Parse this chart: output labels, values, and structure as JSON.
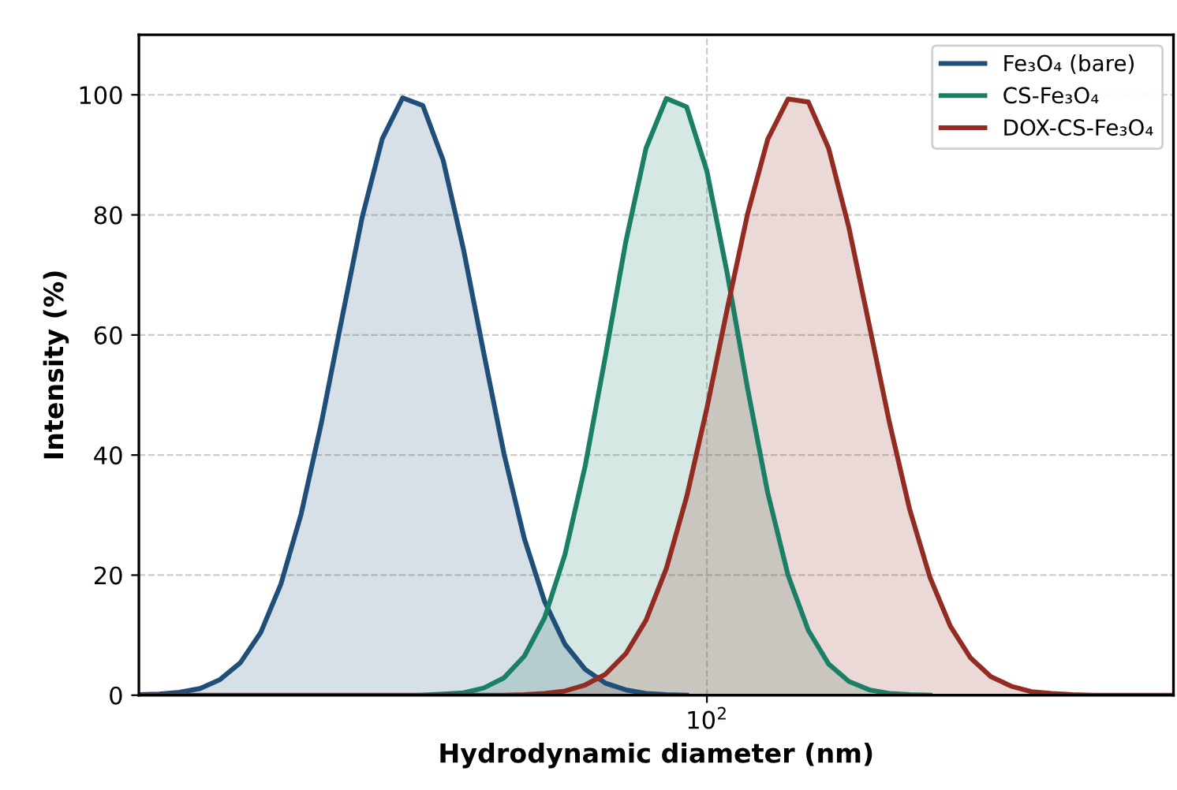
{
  "chart_data": {
    "type": "area",
    "xlabel": "Hydrodynamic diameter (nm)",
    "ylabel": "Intensity (%)",
    "categories": [
      null,
      null,
      null,
      null,
      null,
      null,
      null,
      null,
      null,
      null,
      null,
      null,
      null,
      null,
      null,
      null,
      null,
      null,
      null,
      null,
      null,
      null,
      null,
      null,
      null,
      null,
      null,
      null,
      "10$^{2}$",
      null,
      null,
      null,
      null,
      null,
      null,
      null,
      null,
      null,
      null,
      null,
      null,
      null,
      null,
      null,
      null,
      null,
      null,
      null,
      null,
      null,
      null,
      null
    ],
    "ylim": [
      0,
      110
    ],
    "yticks": [
      0,
      20,
      40,
      60,
      80,
      100
    ],
    "grid": true,
    "stacked": false,
    "legend": "top right",
    "marker": "none",
    "line_style": "solid",
    "series": [
      {
        "name": "Fe₃O₄ (bare)",
        "color": "#1f4e79",
        "values": [
          0.1,
          0.2,
          0.5,
          1.1,
          2.6,
          5.4,
          10.4,
          18.5,
          30.2,
          45.4,
          62.6,
          79.5,
          92.7,
          99.5,
          98.2,
          89.1,
          74.3,
          57.0,
          40.2,
          26.1,
          15.6,
          8.5,
          4.3,
          2.0,
          0.9,
          0.3,
          0.1,
          0.0,
          null,
          null,
          null,
          null,
          null,
          null,
          null,
          null,
          null,
          null,
          null,
          null,
          null,
          null,
          null,
          null,
          null,
          null,
          null,
          null,
          null,
          null,
          null,
          null
        ]
      },
      {
        "name": "CS-Fe₃O₄",
        "color": "#1a7f64",
        "values": [
          null,
          null,
          null,
          null,
          null,
          null,
          null,
          null,
          null,
          null,
          null,
          null,
          null,
          null,
          0.0,
          0.2,
          0.4,
          1.2,
          2.9,
          6.5,
          12.9,
          23.4,
          38.2,
          56.5,
          75.5,
          91.1,
          99.4,
          98.0,
          87.3,
          70.3,
          51.2,
          33.7,
          20.0,
          10.8,
          5.2,
          2.3,
          0.9,
          0.3,
          0.1,
          0.0,
          null,
          null,
          null,
          null,
          null,
          null,
          null,
          null,
          null,
          null,
          null,
          null
        ]
      },
      {
        "name": "DOX-CS-Fe₃O₄",
        "color": "#922b21",
        "values": [
          0,
          0,
          0,
          0,
          0,
          0,
          0,
          0,
          0,
          0,
          0,
          0,
          0,
          0,
          0,
          0,
          0,
          0,
          0.0,
          0.1,
          0.3,
          0.7,
          1.7,
          3.5,
          6.9,
          12.5,
          21.1,
          33.0,
          47.8,
          64.3,
          80.1,
          92.6,
          99.3,
          98.8,
          91.1,
          77.9,
          61.7,
          45.4,
          30.9,
          19.6,
          11.5,
          6.2,
          3.1,
          1.5,
          0.6,
          0.3,
          0.1,
          0.0,
          0,
          0,
          0,
          0
        ]
      }
    ]
  }
}
